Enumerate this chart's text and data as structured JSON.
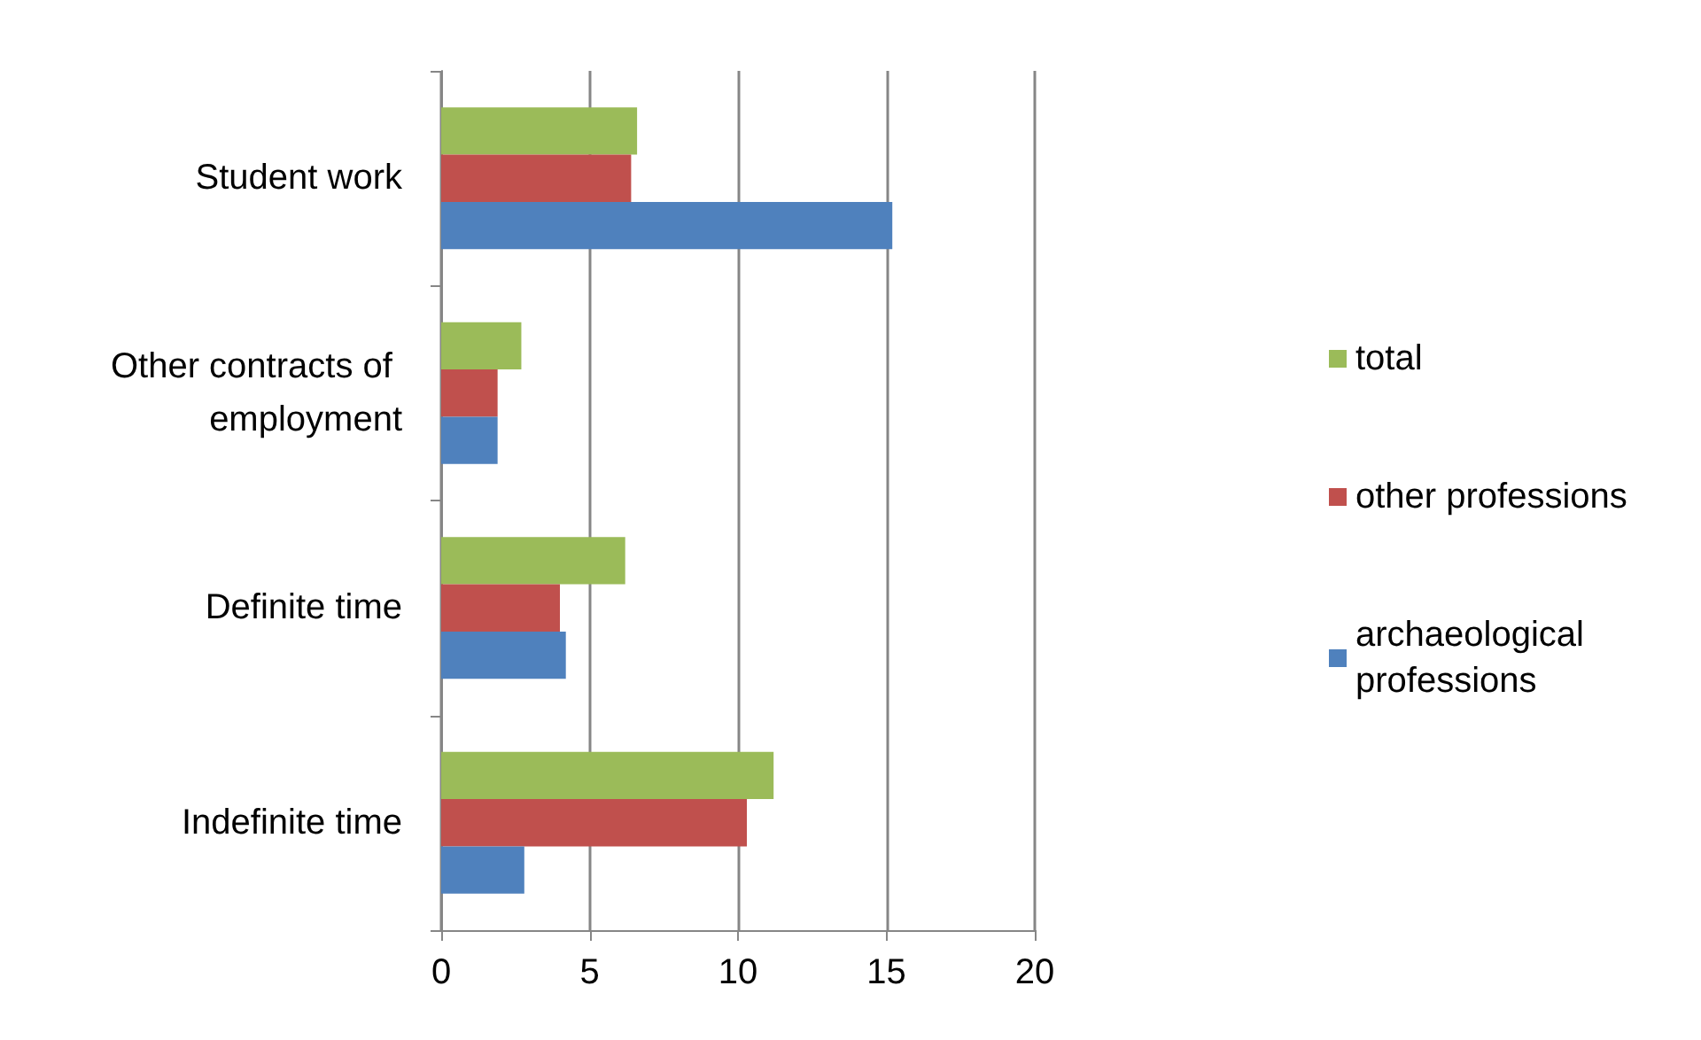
{
  "chart_data": {
    "type": "bar",
    "orientation": "horizontal",
    "categories": [
      "Student work",
      "Other contracts of employment",
      "Definite time",
      "Indefinite time"
    ],
    "series": [
      {
        "name": "total",
        "color": "#9bbb59",
        "values": [
          6.6,
          2.7,
          6.2,
          11.2
        ]
      },
      {
        "name": "other professions",
        "color": "#c0504d",
        "values": [
          6.4,
          1.9,
          4.0,
          10.3
        ]
      },
      {
        "name": "archaeological professions",
        "color": "#4f81bd",
        "values": [
          15.2,
          1.9,
          4.2,
          2.8
        ]
      }
    ],
    "xlim": [
      0,
      20
    ],
    "xticks": [
      0,
      5,
      10,
      15,
      20
    ],
    "grid": "x",
    "legend": "right"
  }
}
